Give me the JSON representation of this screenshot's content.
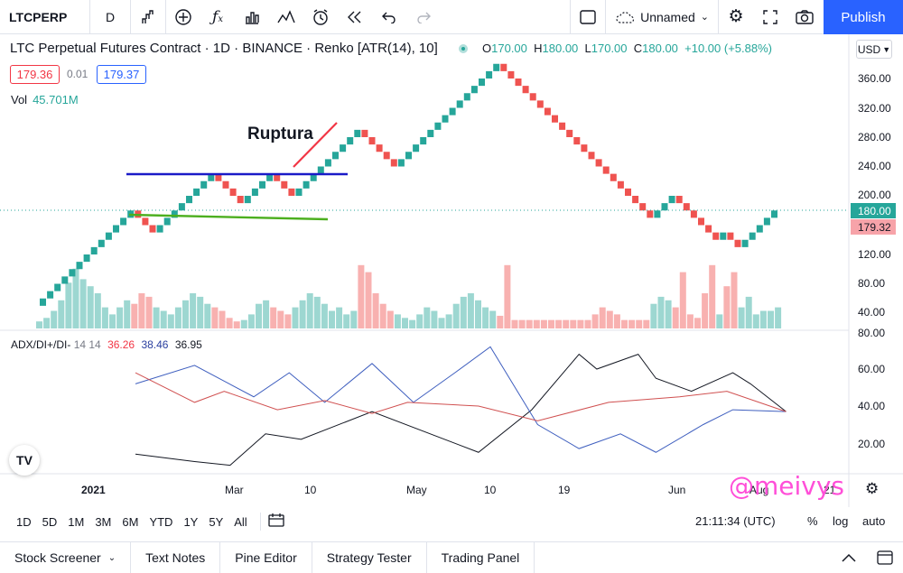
{
  "toolbar": {
    "symbol": "LTCPERP",
    "interval": "D",
    "icons": [
      "chart-type-icon",
      "add-indicator-plus-icon",
      "fx-indicators-icon",
      "templates-icon",
      "compare-icon",
      "alert-clock-icon",
      "replay-icon",
      "undo-icon",
      "redo-icon"
    ],
    "layout_name": "Unnamed",
    "publish_label": "Publish"
  },
  "legend": {
    "title": "LTC Perpetual Futures Contract · 1D · BINANCE · Renko [ATR(14), 10]",
    "o_label": "O",
    "o": "170.00",
    "h_label": "H",
    "h": "180.00",
    "l_label": "L",
    "l": "170.00",
    "c_label": "C",
    "c": "180.00",
    "change": "+10.00 (+5.88%)",
    "sell_price": "179.36",
    "spread": "0.01",
    "buy_price": "179.37",
    "vol_label": "Vol",
    "vol_value": "45.701M"
  },
  "adx": {
    "label": "ADX/DI+/DI-",
    "params": "14 14",
    "v1": "36.26",
    "v2": "38.46",
    "v3": "36.95"
  },
  "currency": "USD",
  "annotation": "Ruptura",
  "price_axis": [
    "360.00",
    "320.00",
    "280.00",
    "240.00",
    "200.00",
    "120.00",
    "80.00",
    "40.00"
  ],
  "adx_axis": [
    "80.00",
    "60.00",
    "40.00",
    "20.00"
  ],
  "last_price": "180.00",
  "pending_price": "179.32",
  "time_axis": [
    "2021",
    "Mar",
    "10",
    "May",
    "10",
    "19",
    "Jun",
    "Aug",
    "21"
  ],
  "watermark": "@meivys",
  "timebar": {
    "ranges": [
      "1D",
      "5D",
      "1M",
      "3M",
      "6M",
      "YTD",
      "1Y",
      "5Y",
      "All"
    ],
    "clock": "21:11:34 (UTC)",
    "percent": "%",
    "log": "log",
    "auto": "auto"
  },
  "panels": [
    "Stock Screener",
    "Text Notes",
    "Pine Editor",
    "Strategy Tester",
    "Trading Panel"
  ],
  "colors": {
    "up": "#26a69a",
    "down": "#ef5350",
    "accent": "#2962ff",
    "watermark": "#ff4fd8"
  },
  "chart_data": {
    "type": "renko",
    "price_axis_ticks": [
      40,
      80,
      120,
      200,
      240,
      280,
      320,
      360
    ],
    "renko_closes": [
      50,
      60,
      70,
      80,
      90,
      100,
      110,
      120,
      130,
      140,
      150,
      160,
      170,
      180,
      170,
      160,
      150,
      160,
      170,
      180,
      190,
      200,
      210,
      220,
      230,
      220,
      210,
      200,
      190,
      200,
      210,
      220,
      230,
      220,
      210,
      200,
      210,
      220,
      230,
      240,
      250,
      260,
      270,
      280,
      290,
      280,
      270,
      260,
      250,
      240,
      250,
      260,
      270,
      280,
      290,
      300,
      310,
      320,
      330,
      340,
      350,
      360,
      370,
      380,
      370,
      360,
      350,
      340,
      330,
      320,
      310,
      300,
      290,
      280,
      270,
      260,
      250,
      240,
      230,
      220,
      210,
      200,
      190,
      180,
      170,
      180,
      190,
      200,
      190,
      180,
      170,
      160,
      150,
      140,
      150,
      140,
      130,
      140,
      150,
      160,
      170,
      180
    ],
    "volume_relative": [
      0.1,
      0.15,
      0.25,
      0.4,
      0.65,
      0.85,
      0.7,
      0.6,
      0.5,
      0.3,
      0.2,
      0.3,
      0.4,
      0.35,
      0.5,
      0.45,
      0.3,
      0.25,
      0.2,
      0.3,
      0.4,
      0.5,
      0.45,
      0.35,
      0.3,
      0.25,
      0.15,
      0.1,
      0.12,
      0.2,
      0.35,
      0.4,
      0.3,
      0.25,
      0.2,
      0.3,
      0.4,
      0.5,
      0.45,
      0.35,
      0.25,
      0.3,
      0.2,
      0.25,
      0.9,
      0.8,
      0.5,
      0.35,
      0.25,
      0.2,
      0.15,
      0.12,
      0.2,
      0.3,
      0.25,
      0.15,
      0.2,
      0.35,
      0.45,
      0.5,
      0.4,
      0.3,
      0.25,
      0.18,
      0.9,
      0.12,
      0.12,
      0.12,
      0.12,
      0.12,
      0.12,
      0.12,
      0.12,
      0.12,
      0.12,
      0.12,
      0.2,
      0.3,
      0.25,
      0.2,
      0.12,
      0.12,
      0.12,
      0.12,
      0.35,
      0.45,
      0.4,
      0.3,
      0.8,
      0.2,
      0.15,
      0.5,
      0.9,
      0.2,
      0.6,
      0.8,
      0.3,
      0.45,
      0.2,
      0.25,
      0.25,
      0.3
    ],
    "adx_line": [
      [
        0,
        14
      ],
      [
        10,
        10
      ],
      [
        16,
        8
      ],
      [
        22,
        25
      ],
      [
        28,
        22
      ],
      [
        40,
        37
      ],
      [
        58,
        15
      ],
      [
        67,
        38
      ],
      [
        75,
        68
      ],
      [
        78,
        60
      ],
      [
        85,
        68
      ],
      [
        88,
        55
      ],
      [
        94,
        48
      ],
      [
        101,
        58
      ],
      [
        104,
        52
      ],
      [
        110,
        37
      ]
    ],
    "di_plus": [
      [
        0,
        52
      ],
      [
        10,
        62
      ],
      [
        20,
        45
      ],
      [
        26,
        58
      ],
      [
        32,
        42
      ],
      [
        40,
        63
      ],
      [
        47,
        42
      ],
      [
        54,
        58
      ],
      [
        60,
        72
      ],
      [
        68,
        30
      ],
      [
        75,
        17
      ],
      [
        82,
        25
      ],
      [
        88,
        15
      ],
      [
        96,
        30
      ],
      [
        101,
        38
      ],
      [
        110,
        37
      ]
    ],
    "di_minus": [
      [
        0,
        58
      ],
      [
        10,
        42
      ],
      [
        15,
        48
      ],
      [
        24,
        38
      ],
      [
        32,
        43
      ],
      [
        40,
        36
      ],
      [
        46,
        42
      ],
      [
        58,
        40
      ],
      [
        68,
        32
      ],
      [
        80,
        42
      ],
      [
        92,
        45
      ],
      [
        100,
        48
      ],
      [
        110,
        37
      ]
    ],
    "adx_axis_ticks": [
      20,
      40,
      60,
      80
    ]
  }
}
